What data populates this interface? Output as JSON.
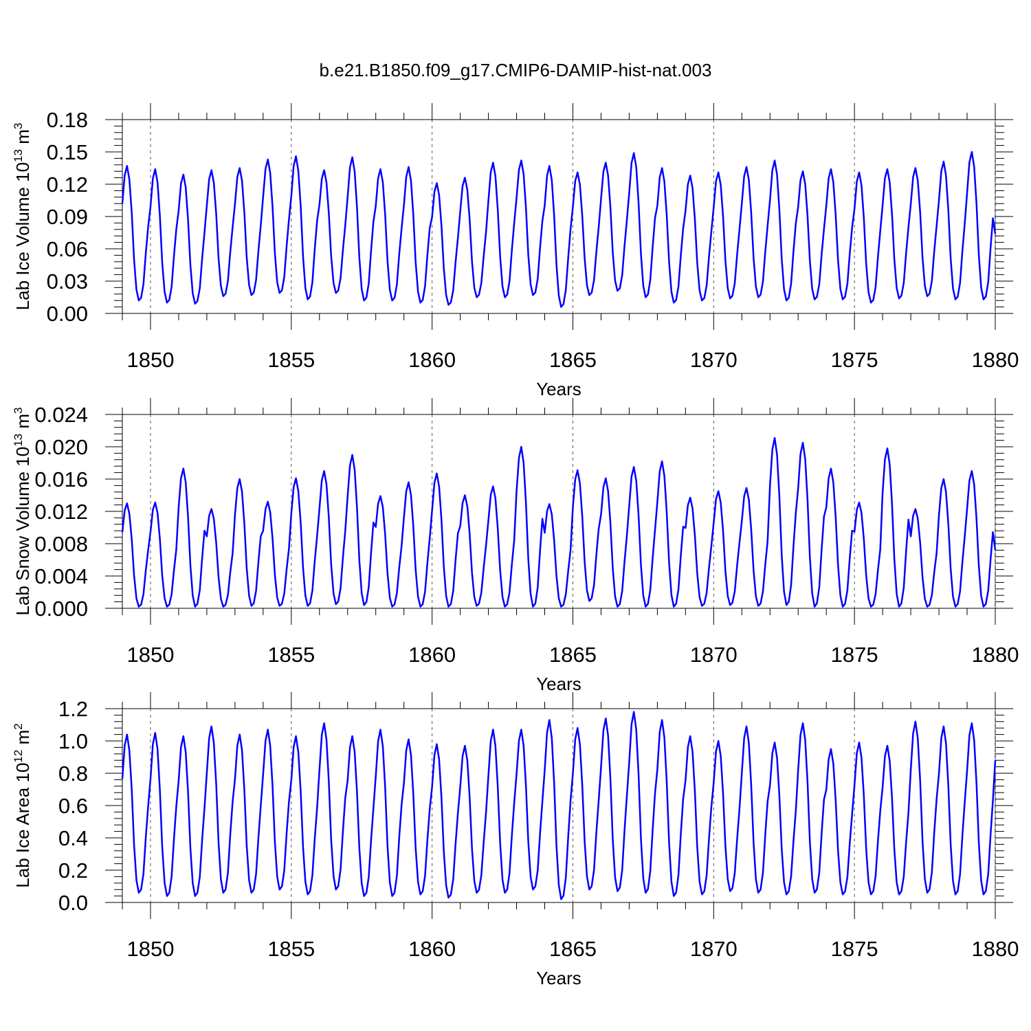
{
  "figure": {
    "title": "b.e21.B1850.f09_g17.CMIP6-DAMIP-hist-nat.003",
    "line_color": "#0000ff",
    "grid": "dashed vertical lines at major x ticks"
  },
  "chart_data": [
    {
      "type": "line",
      "xlabel": "Years",
      "ylabel": "Lab Ice Volume 10",
      "ylabel_exp": "13",
      "ylabel_unit": " m",
      "ylabel_unit_exp": "3",
      "xlim": [
        1849,
        1880
      ],
      "ylim": [
        0,
        0.18
      ],
      "xticks": [
        1850,
        1855,
        1860,
        1865,
        1870,
        1875,
        1880
      ],
      "xtick_labels": [
        "1850",
        "1855",
        "1860",
        "1865",
        "1870",
        "1875",
        "1880"
      ],
      "yticks": [
        0,
        0.03,
        0.06,
        0.09,
        0.12,
        0.15,
        0.18
      ],
      "ytick_labels": [
        "0.00",
        "0.03",
        "0.06",
        "0.09",
        "0.12",
        "0.15",
        "0.18"
      ],
      "start_year": 1849,
      "points_per_year": 12,
      "peaks": [
        0.137,
        0.134,
        0.129,
        0.133,
        0.135,
        0.143,
        0.146,
        0.133,
        0.145,
        0.134,
        0.136,
        0.121,
        0.126,
        0.14,
        0.142,
        0.137,
        0.131,
        0.14,
        0.149,
        0.135,
        0.128,
        0.131,
        0.136,
        0.142,
        0.132,
        0.134,
        0.131,
        0.134,
        0.135,
        0.141,
        0.15
      ],
      "troughs": [
        0.012,
        0.01,
        0.009,
        0.016,
        0.017,
        0.019,
        0.013,
        0.019,
        0.012,
        0.012,
        0.01,
        0.008,
        0.015,
        0.015,
        0.017,
        0.006,
        0.017,
        0.021,
        0.015,
        0.01,
        0.012,
        0.014,
        0.015,
        0.012,
        0.013,
        0.013,
        0.01,
        0.014,
        0.016,
        0.013,
        0.013
      ],
      "final_value": 0.074
    },
    {
      "type": "line",
      "xlabel": "Years",
      "ylabel": "Lab Snow Volume 10",
      "ylabel_exp": "13",
      "ylabel_unit": " m",
      "ylabel_unit_exp": "3",
      "xlim": [
        1849,
        1880
      ],
      "ylim": [
        0,
        0.024
      ],
      "xticks": [
        1850,
        1855,
        1860,
        1865,
        1870,
        1875,
        1880
      ],
      "xtick_labels": [
        "1850",
        "1855",
        "1860",
        "1865",
        "1870",
        "1875",
        "1880"
      ],
      "yticks": [
        0,
        0.004,
        0.008,
        0.012,
        0.016,
        0.02,
        0.024
      ],
      "ytick_labels": [
        "0.000",
        "0.004",
        "0.008",
        "0.012",
        "0.016",
        "0.020",
        "0.024"
      ],
      "start_year": 1849,
      "points_per_year": 12,
      "peaks": [
        0.013,
        0.0131,
        0.0173,
        0.0123,
        0.016,
        0.0132,
        0.0161,
        0.017,
        0.019,
        0.0139,
        0.0156,
        0.0167,
        0.014,
        0.0151,
        0.02,
        0.0129,
        0.0171,
        0.0161,
        0.0175,
        0.0182,
        0.0137,
        0.0145,
        0.0149,
        0.0211,
        0.0205,
        0.0173,
        0.0131,
        0.0198,
        0.0123,
        0.016,
        0.017
      ],
      "troughs": [
        0.0002,
        0.0002,
        0.0002,
        0.0002,
        0.0003,
        0.0003,
        0.0003,
        0.0005,
        0.0004,
        0.0002,
        0.0002,
        0.0002,
        0.0003,
        0.0002,
        0.0002,
        0.0002,
        0.0009,
        0.0002,
        0.0002,
        0.0002,
        0.0003,
        0.0004,
        0.0003,
        0.0004,
        0.0002,
        0.0002,
        0.0002,
        0.0002,
        0.0002,
        0.0002,
        0.0002
      ],
      "final_value": 0.0072
    },
    {
      "type": "line",
      "xlabel": "Years",
      "ylabel": "Lab Ice Area 10",
      "ylabel_exp": "12",
      "ylabel_unit": " m",
      "ylabel_unit_exp": "2",
      "xlim": [
        1849,
        1880
      ],
      "ylim": [
        0,
        1.2
      ],
      "xticks": [
        1850,
        1855,
        1860,
        1865,
        1870,
        1875,
        1880
      ],
      "xtick_labels": [
        "1850",
        "1855",
        "1860",
        "1865",
        "1870",
        "1875",
        "1880"
      ],
      "yticks": [
        0,
        0.2,
        0.4,
        0.6,
        0.8,
        1.0,
        1.2
      ],
      "ytick_labels": [
        "0.0",
        "0.2",
        "0.4",
        "0.6",
        "0.8",
        "1.0",
        "1.2"
      ],
      "start_year": 1849,
      "points_per_year": 12,
      "peaks": [
        1.04,
        1.05,
        1.03,
        1.09,
        1.04,
        1.07,
        1.03,
        1.11,
        1.03,
        1.07,
        1.01,
        0.98,
        0.97,
        1.07,
        1.07,
        1.13,
        1.08,
        1.14,
        1.18,
        1.13,
        1.03,
        1.0,
        1.09,
        0.99,
        1.11,
        0.95,
        0.99,
        0.97,
        1.12,
        1.09,
        1.11
      ],
      "troughs": [
        0.06,
        0.04,
        0.04,
        0.06,
        0.06,
        0.08,
        0.05,
        0.08,
        0.04,
        0.04,
        0.05,
        0.03,
        0.06,
        0.06,
        0.08,
        0.02,
        0.08,
        0.07,
        0.06,
        0.04,
        0.05,
        0.07,
        0.06,
        0.05,
        0.06,
        0.05,
        0.05,
        0.05,
        0.06,
        0.05,
        0.05
      ],
      "final_value": 0.88
    }
  ]
}
